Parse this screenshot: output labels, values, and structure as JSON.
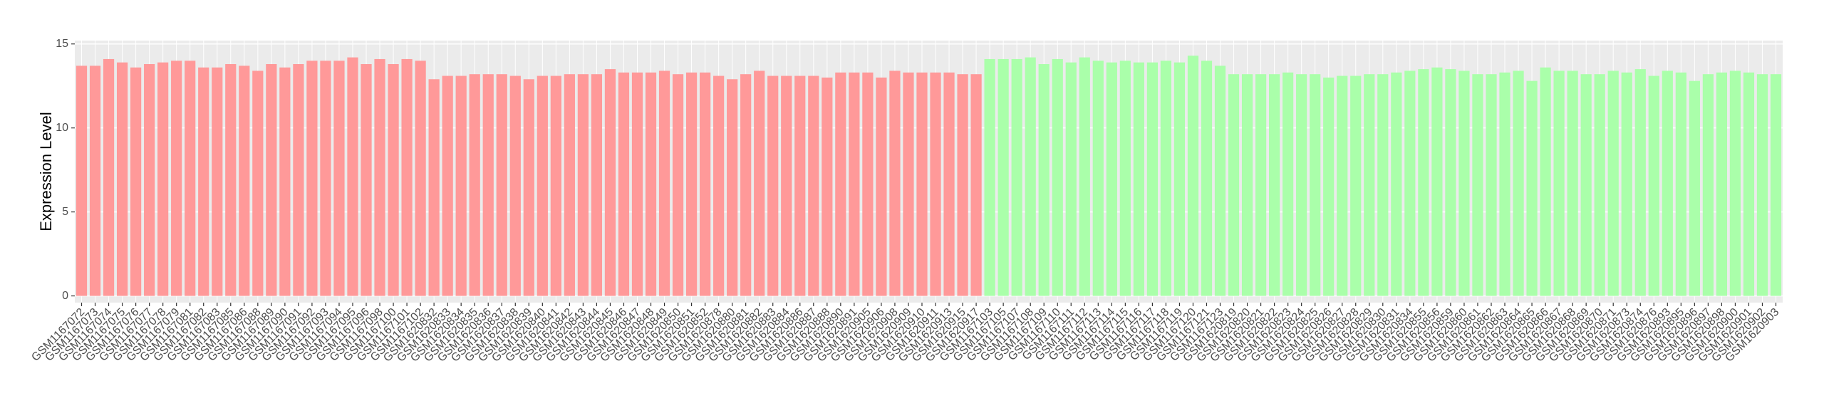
{
  "chart_data": {
    "type": "bar",
    "y_label": "Expression Level",
    "ylim": [
      -0.4,
      15.2
    ],
    "yticks": [
      0,
      5,
      10,
      15
    ],
    "grid": true,
    "groups": [
      {
        "color": "#ff9999",
        "categories": [
          "GSM1167072",
          "GSM1167073",
          "GSM1167074",
          "GSM1167075",
          "GSM1167076",
          "GSM1167077",
          "GSM1167078",
          "GSM1167079",
          "GSM1167081",
          "GSM1167082",
          "GSM1167083",
          "GSM1167085",
          "GSM1167086",
          "GSM1167088",
          "GSM1167089",
          "GSM1167090",
          "GSM1167091",
          "GSM1167092",
          "GSM1167093",
          "GSM1167094",
          "GSM1167095",
          "GSM1167096",
          "GSM1167098",
          "GSM1167100",
          "GSM1167101",
          "GSM1167102",
          "GSM1620832",
          "GSM1620833",
          "GSM1620834",
          "GSM1620835",
          "GSM1620836",
          "GSM1620837",
          "GSM1620838",
          "GSM1620839",
          "GSM1620840",
          "GSM1620841",
          "GSM1620842",
          "GSM1620843",
          "GSM1620844",
          "GSM1620845",
          "GSM1620846",
          "GSM1620847",
          "GSM1620848",
          "GSM1620849",
          "GSM1620850",
          "GSM1620851",
          "GSM1620852",
          "GSM1620878",
          "GSM1620880",
          "GSM1620881",
          "GSM1620882",
          "GSM1620883",
          "GSM1620884",
          "GSM1620886",
          "GSM1620887",
          "GSM1620888",
          "GSM1620890",
          "GSM1620891",
          "GSM1620905",
          "GSM1620906",
          "GSM1620908",
          "GSM1620909",
          "GSM1620910",
          "GSM1620911",
          "GSM1620913",
          "GSM1620915",
          "GSM1620917"
        ],
        "values": [
          13.7,
          13.7,
          14.1,
          13.9,
          13.6,
          13.8,
          13.9,
          14.0,
          14.0,
          13.6,
          13.6,
          13.8,
          13.7,
          13.4,
          13.8,
          13.6,
          13.8,
          14.0,
          14.0,
          14.0,
          14.2,
          13.8,
          14.1,
          13.8,
          14.1,
          14.0,
          12.9,
          13.1,
          13.1,
          13.2,
          13.2,
          13.2,
          13.1,
          12.9,
          13.1,
          13.1,
          13.2,
          13.2,
          13.2,
          13.5,
          13.3,
          13.3,
          13.3,
          13.4,
          13.2,
          13.3,
          13.3,
          13.1,
          12.9,
          13.2,
          13.4,
          13.1,
          13.1,
          13.1,
          13.1,
          13.0,
          13.3,
          13.3,
          13.3,
          13.0,
          13.4,
          13.3,
          13.3,
          13.3,
          13.3,
          13.2,
          13.2
        ]
      },
      {
        "color": "#aaffaa",
        "categories": [
          "GSM1167103",
          "GSM1167105",
          "GSM1167107",
          "GSM1167108",
          "GSM1167109",
          "GSM1167110",
          "GSM1167111",
          "GSM1167112",
          "GSM1167113",
          "GSM1167114",
          "GSM1167115",
          "GSM1167116",
          "GSM1167117",
          "GSM1167118",
          "GSM1167119",
          "GSM1167120",
          "GSM1167121",
          "GSM1167123",
          "GSM1620819",
          "GSM1620820",
          "GSM1620821",
          "GSM1620822",
          "GSM1620823",
          "GSM1620824",
          "GSM1620825",
          "GSM1620826",
          "GSM1620827",
          "GSM1620828",
          "GSM1620829",
          "GSM1620830",
          "GSM1620831",
          "GSM1620834",
          "GSM1620855",
          "GSM1620856",
          "GSM1620859",
          "GSM1620860",
          "GSM1620861",
          "GSM1620862",
          "GSM1620863",
          "GSM1620864",
          "GSM1620865",
          "GSM1620866",
          "GSM1620867",
          "GSM1620868",
          "GSM1620869",
          "GSM1620870",
          "GSM1620871",
          "GSM1620873",
          "GSM1620874",
          "GSM1620876",
          "GSM1620893",
          "GSM1620895",
          "GSM1620896",
          "GSM1620897",
          "GSM1620898",
          "GSM1620900",
          "GSM1620901",
          "GSM1620902",
          "GSM1620903"
        ],
        "values": [
          14.1,
          14.1,
          14.1,
          14.2,
          13.8,
          14.1,
          13.9,
          14.2,
          14.0,
          13.9,
          14.0,
          13.9,
          13.9,
          14.0,
          13.9,
          14.3,
          14.0,
          13.7,
          13.2,
          13.2,
          13.2,
          13.2,
          13.3,
          13.2,
          13.2,
          13.0,
          13.1,
          13.1,
          13.2,
          13.2,
          13.3,
          13.4,
          13.5,
          13.6,
          13.5,
          13.4,
          13.2,
          13.2,
          13.3,
          13.4,
          12.8,
          13.6,
          13.4,
          13.4,
          13.2,
          13.2,
          13.4,
          13.3,
          13.5,
          13.1,
          13.4,
          13.3,
          12.8,
          13.2,
          13.3,
          13.4,
          13.3,
          13.2,
          13.2
        ]
      }
    ]
  }
}
